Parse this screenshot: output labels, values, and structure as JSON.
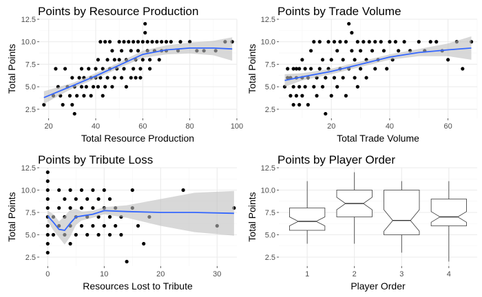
{
  "colors": {
    "point": "#000000",
    "smooth": "#3366ff",
    "band": "#bebebe",
    "panel": "#ffffff",
    "grid_major": "#ebebeb",
    "grid_minor": "#f5f5f5"
  },
  "chart_data": [
    {
      "type": "scatter",
      "title": "Points by Resource Production",
      "xlabel": "Total Resource Production",
      "ylabel": "Total Points",
      "xlim": [
        16,
        100
      ],
      "ylim": [
        1.5,
        12.5
      ],
      "xticks": [
        20,
        40,
        60,
        80,
        100
      ],
      "yticks": [
        2.5,
        5.0,
        7.5,
        10.0,
        12.5
      ],
      "ytick_labels": [
        "2.5",
        "5.0",
        "7.5",
        "10.0",
        "12.5"
      ],
      "smooth": {
        "x": [
          18,
          30,
          40,
          50,
          60,
          70,
          80,
          90,
          98
        ],
        "y": [
          3.8,
          5.1,
          6.2,
          7.4,
          8.6,
          9.1,
          9.3,
          9.3,
          9.2
        ],
        "lower": [
          3.1,
          4.8,
          5.9,
          7.1,
          8.2,
          8.6,
          8.7,
          8.5,
          7.9
        ],
        "upper": [
          4.5,
          5.4,
          6.5,
          7.7,
          9.0,
          9.6,
          9.9,
          10.1,
          10.5
        ]
      },
      "points": [
        [
          18,
          3
        ],
        [
          22,
          4
        ],
        [
          23,
          7
        ],
        [
          24,
          5
        ],
        [
          25,
          4
        ],
        [
          26,
          3
        ],
        [
          27,
          7
        ],
        [
          28,
          5
        ],
        [
          29,
          4
        ],
        [
          30,
          6
        ],
        [
          30,
          3
        ],
        [
          31,
          2
        ],
        [
          31,
          5
        ],
        [
          32,
          4
        ],
        [
          33,
          6
        ],
        [
          34,
          5
        ],
        [
          34,
          7
        ],
        [
          35,
          6
        ],
        [
          35,
          4
        ],
        [
          36,
          5
        ],
        [
          37,
          7
        ],
        [
          38,
          6
        ],
        [
          38,
          4
        ],
        [
          39,
          5
        ],
        [
          40,
          7
        ],
        [
          40,
          6
        ],
        [
          41,
          8
        ],
        [
          41,
          5
        ],
        [
          42,
          10
        ],
        [
          42,
          6
        ],
        [
          43,
          7
        ],
        [
          43,
          4
        ],
        [
          44,
          10
        ],
        [
          44,
          5
        ],
        [
          45,
          8
        ],
        [
          45,
          6
        ],
        [
          46,
          10
        ],
        [
          46,
          7
        ],
        [
          47,
          9
        ],
        [
          47,
          5
        ],
        [
          48,
          8
        ],
        [
          48,
          6
        ],
        [
          49,
          7
        ],
        [
          50,
          10
        ],
        [
          50,
          8
        ],
        [
          51,
          9
        ],
        [
          51,
          6
        ],
        [
          52,
          10
        ],
        [
          52,
          7
        ],
        [
          53,
          8
        ],
        [
          53,
          5
        ],
        [
          54,
          10
        ],
        [
          55,
          9
        ],
        [
          55,
          6
        ],
        [
          56,
          7
        ],
        [
          56,
          10
        ],
        [
          57,
          8
        ],
        [
          57,
          6
        ],
        [
          58,
          10
        ],
        [
          58,
          9
        ],
        [
          59,
          7
        ],
        [
          59,
          6
        ],
        [
          60,
          10
        ],
        [
          60,
          8
        ],
        [
          61,
          12
        ],
        [
          61,
          11
        ],
        [
          62,
          10
        ],
        [
          62,
          9
        ],
        [
          63,
          8
        ],
        [
          63,
          7
        ],
        [
          64,
          10
        ],
        [
          65,
          9
        ],
        [
          66,
          10
        ],
        [
          67,
          8
        ],
        [
          68,
          9
        ],
        [
          68,
          10
        ],
        [
          70,
          9
        ],
        [
          70,
          10
        ],
        [
          72,
          10
        ],
        [
          75,
          9
        ],
        [
          76,
          10
        ],
        [
          80,
          10
        ],
        [
          83,
          9
        ],
        [
          86,
          9
        ],
        [
          91,
          9
        ],
        [
          95,
          10
        ],
        [
          98,
          10
        ]
      ]
    },
    {
      "type": "scatter",
      "title": "Points by Trade Volume",
      "xlabel": "Total Trade Volume",
      "ylabel": "Total Points",
      "xlim": [
        2,
        70
      ],
      "ylim": [
        1.5,
        12.5
      ],
      "xticks": [
        20,
        40,
        60
      ],
      "yticks": [
        2.5,
        5.0,
        7.5,
        10.0,
        12.5
      ],
      "ytick_labels": [
        "2.5",
        "5.0",
        "7.5",
        "10.0",
        "12.5"
      ],
      "smooth": {
        "x": [
          4,
          10,
          20,
          30,
          40,
          50,
          60,
          68
        ],
        "y": [
          5.7,
          6.1,
          6.7,
          7.5,
          8.3,
          8.8,
          9.1,
          9.3
        ],
        "lower": [
          5.0,
          5.7,
          6.4,
          7.2,
          8.0,
          8.4,
          8.4,
          8.0
        ],
        "upper": [
          6.4,
          6.5,
          7.0,
          7.8,
          8.6,
          9.2,
          9.8,
          10.6
        ]
      },
      "points": [
        [
          4,
          5
        ],
        [
          5,
          6
        ],
        [
          5,
          7
        ],
        [
          6,
          4
        ],
        [
          6,
          6
        ],
        [
          7,
          3
        ],
        [
          7,
          5
        ],
        [
          7,
          7
        ],
        [
          8,
          4
        ],
        [
          8,
          6
        ],
        [
          8,
          7
        ],
        [
          9,
          3
        ],
        [
          9,
          5
        ],
        [
          9,
          7
        ],
        [
          10,
          6
        ],
        [
          10,
          4
        ],
        [
          10,
          8
        ],
        [
          11,
          7
        ],
        [
          11,
          5
        ],
        [
          12,
          3
        ],
        [
          12,
          6
        ],
        [
          13,
          7
        ],
        [
          13,
          9
        ],
        [
          14,
          5
        ],
        [
          14,
          10
        ],
        [
          15,
          6
        ],
        [
          15,
          4
        ],
        [
          16,
          7
        ],
        [
          16,
          10
        ],
        [
          17,
          8
        ],
        [
          17,
          5
        ],
        [
          18,
          2
        ],
        [
          18,
          6
        ],
        [
          19,
          10
        ],
        [
          19,
          7
        ],
        [
          20,
          8
        ],
        [
          20,
          4
        ],
        [
          21,
          10
        ],
        [
          21,
          6
        ],
        [
          22,
          9
        ],
        [
          22,
          5
        ],
        [
          23,
          7
        ],
        [
          23,
          10
        ],
        [
          24,
          8
        ],
        [
          24,
          6
        ],
        [
          25,
          10
        ],
        [
          25,
          4
        ],
        [
          26,
          12
        ],
        [
          26,
          7
        ],
        [
          27,
          11
        ],
        [
          27,
          9
        ],
        [
          28,
          8
        ],
        [
          28,
          6
        ],
        [
          29,
          10
        ],
        [
          29,
          5
        ],
        [
          30,
          7
        ],
        [
          30,
          9
        ],
        [
          31,
          10
        ],
        [
          32,
          8
        ],
        [
          32,
          6
        ],
        [
          33,
          10
        ],
        [
          34,
          9
        ],
        [
          35,
          7
        ],
        [
          35,
          10
        ],
        [
          36,
          8
        ],
        [
          37,
          10
        ],
        [
          38,
          9
        ],
        [
          39,
          7
        ],
        [
          40,
          10
        ],
        [
          41,
          8
        ],
        [
          42,
          10
        ],
        [
          43,
          9
        ],
        [
          45,
          10
        ],
        [
          47,
          9
        ],
        [
          50,
          10
        ],
        [
          52,
          9
        ],
        [
          54,
          10
        ],
        [
          56,
          10
        ],
        [
          58,
          9
        ],
        [
          60,
          8
        ],
        [
          63,
          10
        ],
        [
          65,
          7
        ],
        [
          68,
          10
        ]
      ]
    },
    {
      "type": "scatter",
      "title": "Points by Tribute Loss",
      "xlabel": "Resources Lost to Tribute",
      "ylabel": "Total Points",
      "xlim": [
        -1.5,
        33.5
      ],
      "ylim": [
        1.5,
        12.5
      ],
      "xticks": [
        0,
        10,
        20,
        30
      ],
      "yticks": [
        2.5,
        5.0,
        7.5,
        10.0,
        12.5
      ],
      "ytick_labels": [
        "2.5",
        "5.0",
        "7.5",
        "10.0",
        "12.5"
      ],
      "smooth": {
        "x": [
          0,
          1,
          2,
          3,
          4,
          5,
          6,
          8,
          10,
          14,
          20,
          26,
          33
        ],
        "y": [
          7.1,
          6.4,
          5.6,
          5.5,
          6.3,
          7.0,
          7.1,
          7.3,
          7.7,
          7.6,
          7.5,
          7.5,
          7.4
        ],
        "lower": [
          6.5,
          5.5,
          4.7,
          3.9,
          4.8,
          6.1,
          6.6,
          6.9,
          7.3,
          6.9,
          6.0,
          5.3,
          4.9
        ],
        "upper": [
          7.7,
          7.3,
          6.5,
          7.1,
          7.8,
          7.9,
          7.6,
          7.7,
          8.1,
          8.3,
          9.0,
          9.7,
          9.9
        ]
      },
      "points": [
        [
          0,
          12
        ],
        [
          0,
          11
        ],
        [
          0,
          10
        ],
        [
          0,
          9
        ],
        [
          0,
          8
        ],
        [
          0,
          7
        ],
        [
          0,
          6
        ],
        [
          0,
          5
        ],
        [
          0,
          4
        ],
        [
          0,
          3
        ],
        [
          1,
          7
        ],
        [
          1,
          5
        ],
        [
          2,
          10
        ],
        [
          2,
          8
        ],
        [
          2,
          6
        ],
        [
          3,
          9
        ],
        [
          3,
          7
        ],
        [
          3,
          5
        ],
        [
          4,
          10
        ],
        [
          4,
          8
        ],
        [
          4,
          6
        ],
        [
          4,
          4
        ],
        [
          5,
          9
        ],
        [
          5,
          7
        ],
        [
          5,
          5
        ],
        [
          6,
          10
        ],
        [
          6,
          8
        ],
        [
          6,
          6
        ],
        [
          7,
          9
        ],
        [
          7,
          7
        ],
        [
          7,
          5
        ],
        [
          8,
          10
        ],
        [
          8,
          8
        ],
        [
          8,
          6
        ],
        [
          9,
          9
        ],
        [
          9,
          7
        ],
        [
          9,
          5
        ],
        [
          10,
          10
        ],
        [
          10,
          8
        ],
        [
          10,
          6
        ],
        [
          11,
          9
        ],
        [
          11,
          7
        ],
        [
          11,
          5
        ],
        [
          12,
          8
        ],
        [
          12,
          6
        ],
        [
          13,
          7
        ],
        [
          13,
          5
        ],
        [
          14,
          2
        ],
        [
          15,
          10
        ],
        [
          15,
          8
        ],
        [
          16,
          6
        ],
        [
          17,
          4
        ],
        [
          18,
          7
        ],
        [
          24,
          10
        ],
        [
          30,
          6
        ],
        [
          33,
          8
        ]
      ]
    },
    {
      "type": "box",
      "title": "Points by Player Order",
      "xlabel": "Player Order",
      "ylabel": "Total Points",
      "categories": [
        "1",
        "2",
        "3",
        "4"
      ],
      "ylim": [
        1.5,
        12.5
      ],
      "yticks": [
        2.5,
        5.0,
        7.5,
        10.0,
        12.5
      ],
      "ytick_labels": [
        "2.5",
        "5.0",
        "7.5",
        "10.0",
        "12.5"
      ],
      "boxes": [
        {
          "min": 4,
          "q1": 5.5,
          "median": 6.5,
          "q3": 8,
          "max": 11,
          "notch_low": 6.0,
          "notch_high": 7.0
        },
        {
          "min": 4,
          "q1": 7,
          "median": 8.5,
          "q3": 10,
          "max": 12,
          "notch_low": 7.8,
          "notch_high": 9.2
        },
        {
          "min": 3,
          "q1": 5,
          "median": 6.6,
          "q3": 10,
          "max": 11,
          "notch_low": 5.4,
          "notch_high": 7.8
        },
        {
          "min": 2,
          "q1": 6,
          "median": 7,
          "q3": 9,
          "max": 11,
          "notch_low": 6.4,
          "notch_high": 7.6
        }
      ]
    }
  ]
}
